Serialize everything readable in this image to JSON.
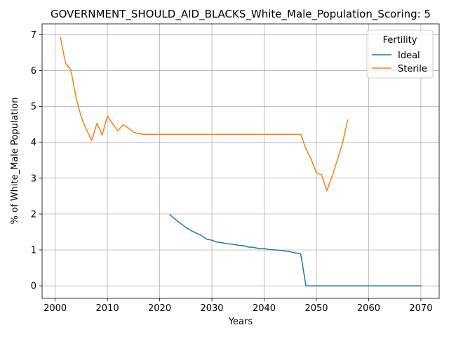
{
  "chart_data": {
    "type": "line",
    "title": "GOVERNMENT_SHOULD_AID_BLACKS_White_Male_Population_Scoring: 5",
    "xlabel": "Years",
    "ylabel": "% of White_Male Population",
    "xlim": [
      1997.5,
      2073.5
    ],
    "ylim": [
      -0.35,
      7.3
    ],
    "xticks": [
      2000,
      2010,
      2020,
      2030,
      2040,
      2050,
      2060,
      2070
    ],
    "yticks": [
      0,
      1,
      2,
      3,
      4,
      5,
      6,
      7
    ],
    "grid": true,
    "legend": {
      "title": "Fertility",
      "placement": "top-right",
      "entries": [
        "Ideal",
        "Sterile"
      ]
    },
    "series": [
      {
        "name": "Ideal",
        "color": "#1f77b4",
        "x": [
          2022,
          2023,
          2024,
          2025,
          2026,
          2027,
          2028,
          2029,
          2030,
          2031,
          2032,
          2033,
          2034,
          2035,
          2036,
          2037,
          2038,
          2039,
          2040,
          2041,
          2042,
          2043,
          2044,
          2045,
          2046,
          2047,
          2048,
          2049,
          2050,
          2055,
          2060,
          2065,
          2070
        ],
        "y": [
          1.98,
          1.85,
          1.74,
          1.63,
          1.54,
          1.47,
          1.4,
          1.3,
          1.27,
          1.22,
          1.2,
          1.17,
          1.16,
          1.13,
          1.12,
          1.08,
          1.07,
          1.04,
          1.04,
          1.01,
          1.0,
          0.99,
          0.97,
          0.95,
          0.92,
          0.89,
          0.0,
          0.0,
          0.0,
          0.0,
          0.0,
          0.0,
          0.0
        ]
      },
      {
        "name": "Sterile",
        "color": "#ff7f0e",
        "x": [
          2001,
          2002,
          2003,
          2004,
          2005,
          2006,
          2007,
          2008,
          2009,
          2010,
          2011,
          2012,
          2013,
          2014,
          2015,
          2016,
          2017,
          2018,
          2020,
          2025,
          2030,
          2035,
          2040,
          2045,
          2047,
          2048,
          2049,
          2050,
          2051,
          2052,
          2053,
          2054,
          2055,
          2056
        ],
        "y": [
          6.93,
          6.2,
          6.02,
          5.25,
          4.7,
          4.35,
          4.05,
          4.53,
          4.2,
          4.73,
          4.52,
          4.32,
          4.49,
          4.4,
          4.28,
          4.24,
          4.22,
          4.22,
          4.22,
          4.22,
          4.22,
          4.22,
          4.22,
          4.22,
          4.22,
          3.82,
          3.53,
          3.15,
          3.09,
          2.65,
          3.05,
          3.5,
          3.97,
          4.62
        ]
      }
    ]
  }
}
